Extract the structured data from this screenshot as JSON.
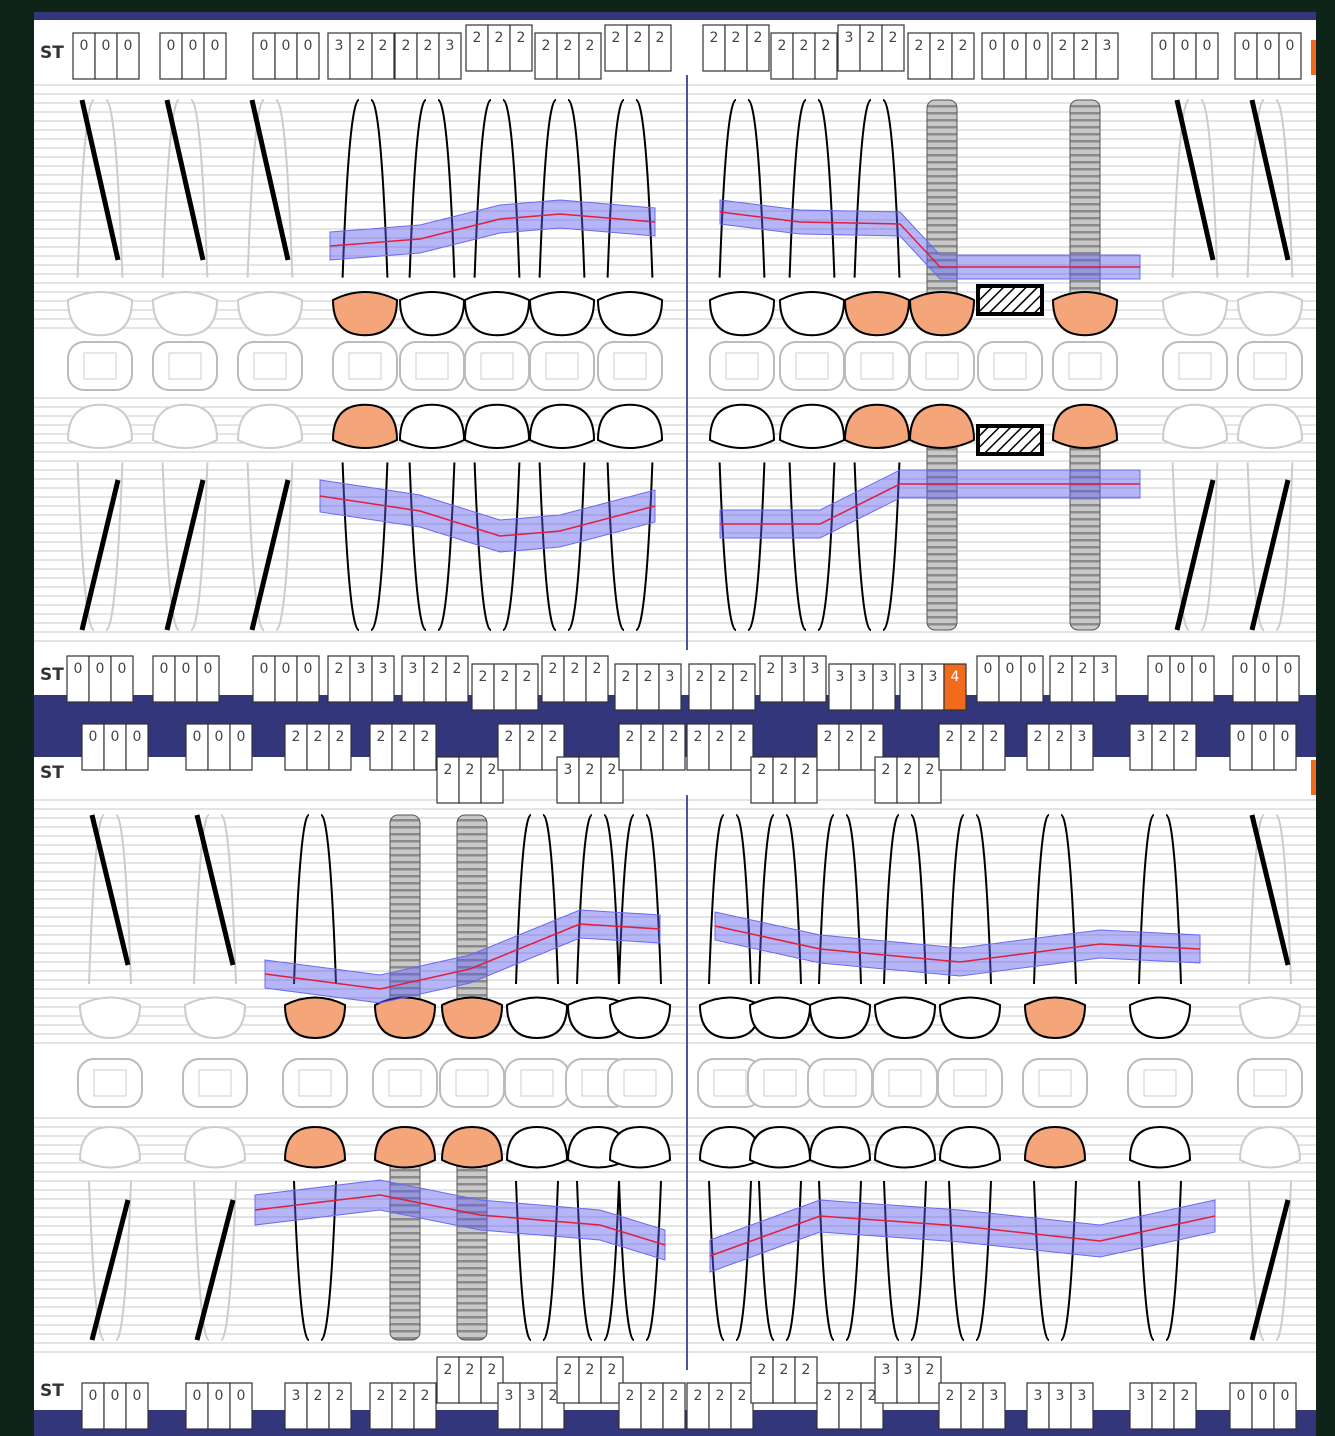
{
  "st_label": "ST",
  "maxilla": {
    "buccal": [
      [
        0,
        0,
        0
      ],
      [
        0,
        0,
        0
      ],
      [
        0,
        0,
        0
      ],
      [
        3,
        2,
        2
      ],
      [
        2,
        2,
        3
      ],
      [
        2,
        2,
        2
      ],
      [
        2,
        2,
        2
      ],
      [
        2,
        2,
        2
      ],
      [
        2,
        2,
        2
      ],
      [
        2,
        2,
        2
      ],
      [
        3,
        2,
        2
      ],
      [
        2,
        2,
        2
      ],
      [
        0,
        0,
        0
      ],
      [
        2,
        2,
        3
      ],
      [
        0,
        0,
        0
      ],
      [
        0,
        0,
        0
      ]
    ],
    "palatal": [
      [
        0,
        0,
        0
      ],
      [
        0,
        0,
        0
      ],
      [
        0,
        0,
        0
      ],
      [
        2,
        3,
        3
      ],
      [
        3,
        2,
        2
      ],
      [
        2,
        2,
        2
      ],
      [
        2,
        2,
        2
      ],
      [
        2,
        2,
        3
      ],
      [
        2,
        2,
        2
      ],
      [
        2,
        3,
        3
      ],
      [
        3,
        3,
        3
      ],
      [
        3,
        3,
        4
      ],
      [
        0,
        0,
        0
      ],
      [
        2,
        2,
        3
      ],
      [
        0,
        0,
        0
      ],
      [
        0,
        0,
        0
      ]
    ]
  },
  "mandible": {
    "lingual": [
      [
        0,
        0,
        0
      ],
      [
        0,
        0,
        0
      ],
      [
        2,
        2,
        2
      ],
      [
        2,
        2,
        2
      ],
      [
        2,
        2,
        2
      ],
      [
        2,
        2,
        2
      ],
      [
        3,
        2,
        2
      ],
      [
        2,
        2,
        2
      ],
      [
        2,
        2,
        2
      ],
      [
        2,
        2,
        2
      ],
      [
        2,
        2,
        2
      ],
      [
        2,
        2,
        2
      ],
      [
        2,
        2,
        2
      ],
      [
        2,
        2,
        3
      ],
      [
        3,
        2,
        2
      ],
      [
        0,
        0,
        0
      ]
    ],
    "buccal": [
      [
        0,
        0,
        0
      ],
      [
        0,
        0,
        0
      ],
      [
        3,
        2,
        2
      ],
      [
        2,
        2,
        2
      ],
      [
        2,
        2,
        2
      ],
      [
        3,
        3,
        2
      ],
      [
        2,
        2,
        2
      ],
      [
        2,
        2,
        2
      ],
      [
        2,
        2,
        2
      ],
      [
        2,
        2,
        2
      ],
      [
        2,
        2,
        2
      ],
      [
        3,
        3,
        2
      ],
      [
        2,
        2,
        3
      ],
      [
        3,
        3,
        3
      ],
      [
        3,
        2,
        2
      ],
      [
        0,
        0,
        0
      ]
    ]
  },
  "alert_from": 4,
  "alert_color": "#f26a1b"
}
